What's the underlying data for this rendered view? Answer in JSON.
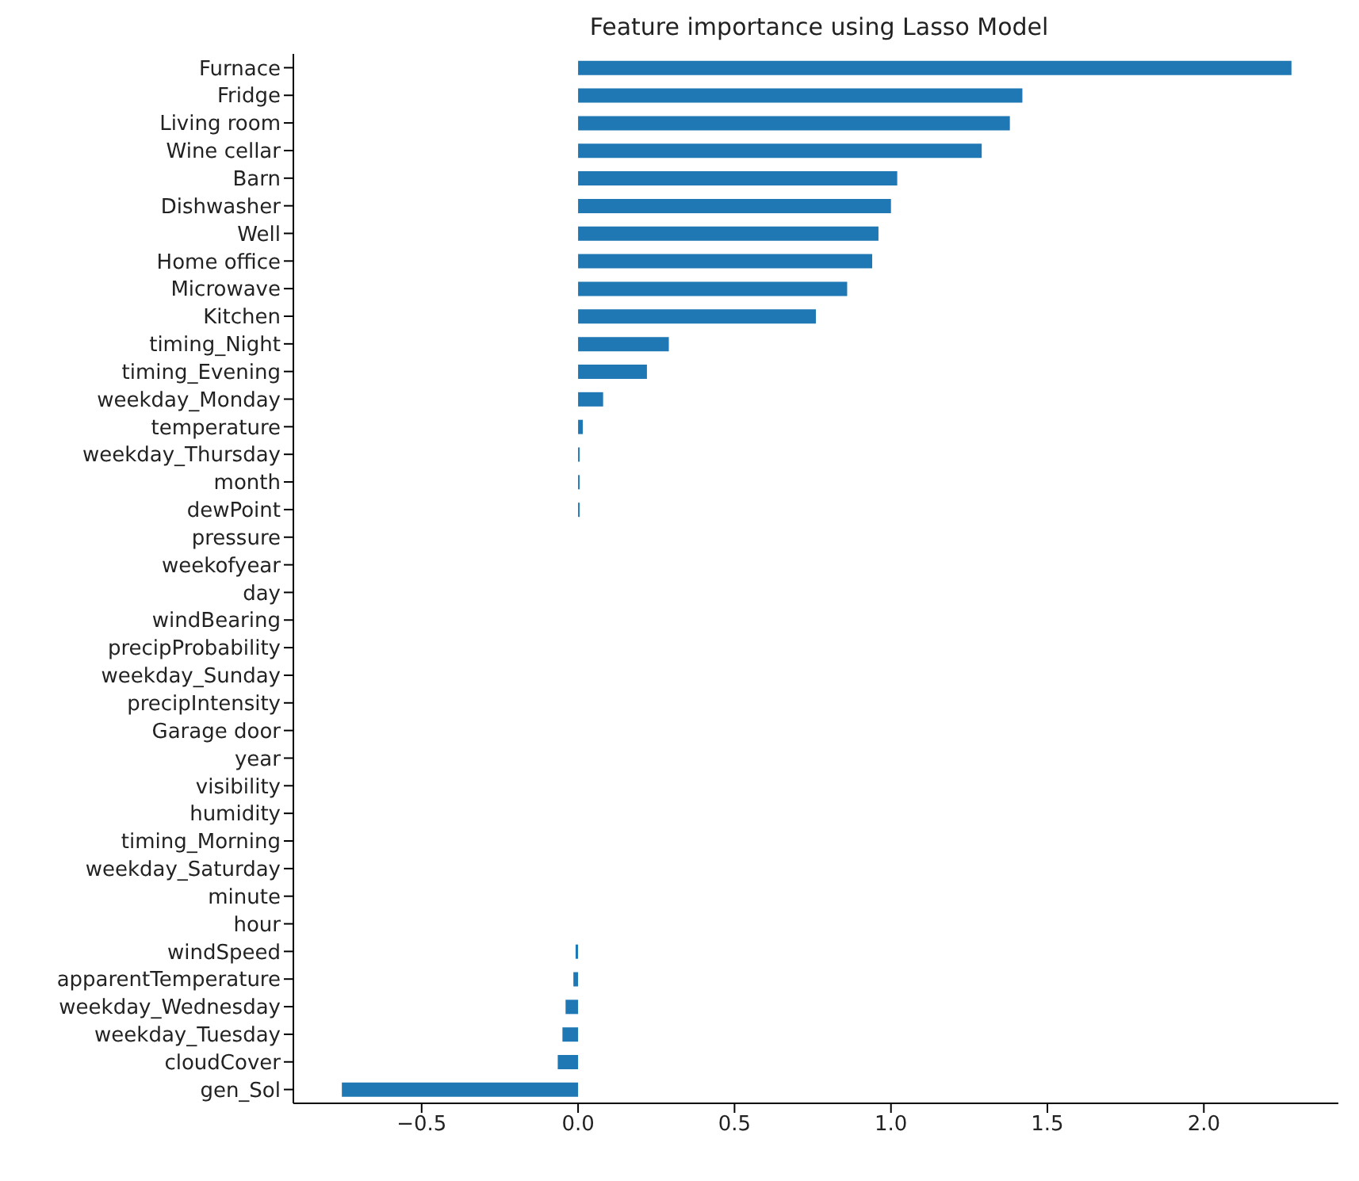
{
  "chart_data": {
    "type": "bar",
    "orientation": "horizontal",
    "title": "Feature importance using Lasso Model",
    "categories": [
      "Furnace",
      "Fridge",
      "Living room",
      "Wine cellar",
      "Barn",
      "Dishwasher",
      "Well",
      "Home office",
      "Microwave",
      "Kitchen",
      "timing_Night",
      "timing_Evening",
      "weekday_Monday",
      "temperature",
      "weekday_Thursday",
      "month",
      "dewPoint",
      "pressure",
      "weekofyear",
      "day",
      "windBearing",
      "precipProbability",
      "weekday_Sunday",
      "precipIntensity",
      "Garage door",
      "year",
      "visibility",
      "humidity",
      "timing_Morning",
      "weekday_Saturday",
      "minute",
      "hour",
      "windSpeed",
      "apparentTemperature",
      "weekday_Wednesday",
      "weekday_Tuesday",
      "cloudCover",
      "gen_Sol"
    ],
    "values": [
      2.28,
      1.42,
      1.38,
      1.29,
      1.02,
      1.0,
      0.96,
      0.94,
      0.86,
      0.76,
      0.29,
      0.22,
      0.08,
      0.015,
      0.005,
      0.005,
      0.005,
      0,
      0,
      0,
      0,
      0,
      0,
      0,
      0,
      0,
      0,
      0,
      0,
      0,
      0,
      0,
      -0.008,
      -0.015,
      -0.04,
      -0.05,
      -0.065,
      -0.755
    ],
    "color": "#1f77b4",
    "xlim": [
      -0.91,
      2.43
    ],
    "xticks": [
      {
        "value": -0.5,
        "label": "−0.5"
      },
      {
        "value": 0,
        "label": "0.0"
      },
      {
        "value": 0.5,
        "label": "0.5"
      },
      {
        "value": 1,
        "label": "1.0"
      },
      {
        "value": 1.5,
        "label": "1.5"
      },
      {
        "value": 2,
        "label": "2.0"
      }
    ],
    "grid": false,
    "legend": false
  }
}
